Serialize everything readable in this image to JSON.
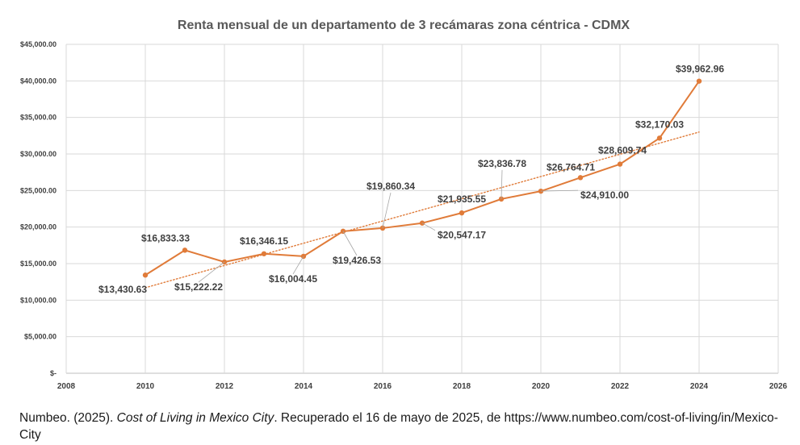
{
  "chart_data": {
    "type": "line",
    "title": "Renta mensual de un departamento de 3 recámaras zona céntrica - CDMX",
    "xlabel": "",
    "ylabel": "",
    "xlim": [
      2008,
      2026
    ],
    "ylim": [
      0,
      45000
    ],
    "x_ticks": [
      "2008",
      "2010",
      "2012",
      "2014",
      "2016",
      "2018",
      "2020",
      "2022",
      "2024",
      "2026"
    ],
    "y_ticks": [
      "$-",
      "$5,000.00",
      "$10,000.00",
      "$15,000.00",
      "$20,000.00",
      "$25,000.00",
      "$30,000.00",
      "$35,000.00",
      "$40,000.00",
      "$45,000.00"
    ],
    "grid": true,
    "series": [
      {
        "x": [
          2010,
          2011,
          2012,
          2013,
          2014,
          2015,
          2016,
          2017,
          2018,
          2019,
          2020,
          2021,
          2022,
          2023,
          2024
        ],
        "values": [
          13430.63,
          16833.33,
          15222.22,
          16346.15,
          16004.45,
          19426.53,
          19860.34,
          20547.17,
          21935.55,
          23836.78,
          24910.0,
          26764.71,
          28609.74,
          32170.03,
          39962.96
        ],
        "labels": [
          "$13,430.63",
          "$16,833.33",
          "$15,222.22",
          "$16,346.15",
          "$16,004.45",
          "$19,426.53",
          "$19,860.34",
          "$20,547.17",
          "$21,935.55",
          "$23,836.78",
          "$24,910.00",
          "$26,764.71",
          "$28,609.74",
          "$32,170.03",
          "$39,962.96"
        ],
        "color": "#E07B39"
      }
    ],
    "trendline": {
      "type": "linear",
      "style": "dotted",
      "color": "#E07B39",
      "x": [
        2010,
        2024
      ],
      "y": [
        11700,
        33000
      ]
    }
  },
  "caption": {
    "prefix": "Numbeo. (2025). ",
    "title": "Cost of Living in Mexico City",
    "suffix": ". Recuperado el 16 de mayo de 2025, de https://www.numbeo.com/cost-of-living/in/Mexico-City"
  }
}
